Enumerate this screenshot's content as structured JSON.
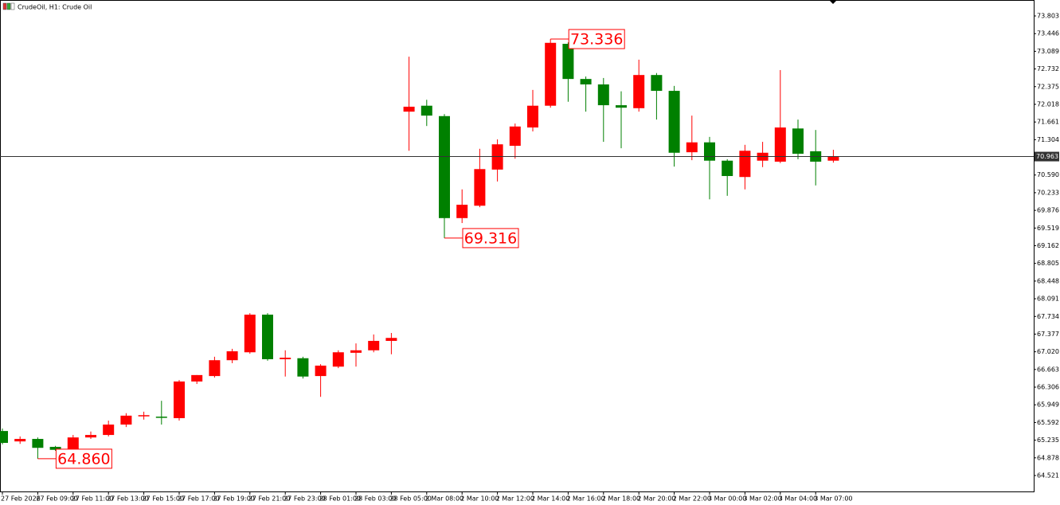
{
  "chart_data": {
    "type": "candlestick",
    "title": "CrudeOil, H1: Crude Oil",
    "categories": [
      "27 Feb 2026",
      null,
      "27 Feb 09:00",
      null,
      "27 Feb 11:00",
      null,
      "27 Feb 13:00",
      null,
      "27 Feb 15:00",
      null,
      "27 Feb 17:00",
      null,
      "27 Feb 19:00",
      null,
      "27 Feb 21:00",
      null,
      "27 Feb 23:00",
      null,
      "28 Feb 01:00",
      null,
      "28 Feb 03:00",
      null,
      "28 Feb 05:00",
      null,
      "2 Mar 08:00",
      null,
      "2 Mar 10:00",
      null,
      "2 Mar 12:00",
      null,
      "2 Mar 14:00",
      null,
      "2 Mar 16:00",
      null,
      "2 Mar 18:00",
      null,
      "2 Mar 20:00",
      null,
      "2 Mar 22:00",
      null,
      "3 Mar 00:00",
      null,
      "3 Mar 02:00",
      null,
      "3 Mar 04:00",
      null,
      "3 Mar 07:00",
      null
    ],
    "open": [
      65.42,
      65.21,
      65.26,
      65.1,
      65.04,
      65.29,
      65.34,
      65.55,
      65.72,
      65.71,
      65.68,
      66.42,
      66.53,
      66.85,
      67.01,
      67.77,
      66.87,
      66.89,
      66.53,
      66.72,
      67.0,
      67.05,
      67.24,
      71.87,
      71.99,
      71.78,
      69.72,
      69.97,
      70.7,
      71.18,
      71.55,
      71.99,
      73.24,
      72.53,
      72.42,
      72.0,
      71.94,
      72.61,
      72.29,
      71.05,
      71.25,
      70.88,
      70.55,
      70.88,
      70.86,
      71.53,
      71.07,
      70.88
    ],
    "high": [
      65.47,
      65.31,
      65.29,
      65.12,
      65.34,
      65.41,
      65.63,
      65.78,
      65.81,
      66.03,
      66.45,
      66.55,
      66.92,
      67.08,
      67.8,
      67.8,
      67.05,
      66.92,
      66.77,
      67.05,
      67.19,
      67.37,
      67.4,
      72.98,
      72.11,
      71.82,
      70.3,
      71.12,
      71.31,
      71.63,
      72.31,
      73.336,
      73.27,
      72.58,
      72.55,
      72.28,
      72.92,
      72.65,
      72.39,
      71.79,
      71.36,
      70.91,
      71.2,
      71.26,
      72.71,
      71.71,
      71.5,
      71.1
    ],
    "low": [
      65.15,
      65.16,
      64.86,
      65.02,
      65.0,
      65.26,
      65.31,
      65.5,
      65.65,
      65.55,
      65.63,
      66.37,
      66.5,
      66.79,
      66.98,
      66.84,
      66.52,
      66.48,
      66.11,
      66.69,
      66.72,
      67.01,
      66.97,
      71.08,
      71.58,
      69.316,
      69.62,
      69.94,
      70.46,
      70.92,
      71.47,
      71.95,
      72.07,
      71.87,
      71.26,
      71.13,
      71.87,
      71.71,
      70.76,
      70.89,
      70.1,
      70.17,
      70.3,
      70.75,
      70.83,
      70.91,
      70.38,
      70.84
    ],
    "close": [
      65.18,
      65.26,
      65.08,
      65.04,
      65.29,
      65.34,
      65.55,
      65.73,
      65.74,
      65.7,
      66.42,
      66.55,
      66.85,
      67.03,
      67.77,
      66.87,
      66.9,
      66.52,
      66.74,
      67.01,
      67.05,
      67.24,
      67.3,
      71.97,
      71.79,
      69.72,
      69.99,
      70.71,
      71.21,
      71.57,
      71.99,
      73.26,
      72.53,
      72.42,
      72.0,
      71.95,
      72.61,
      72.29,
      71.04,
      71.25,
      70.88,
      70.57,
      71.08,
      71.04,
      71.55,
      71.02,
      70.86,
      70.963
    ],
    "up_color": "#ff0000",
    "down_color": "#008000",
    "ylim": [
      64.199,
      74.125
    ],
    "yticks": [
      73.803,
      73.446,
      73.089,
      72.732,
      72.375,
      72.018,
      71.661,
      71.304,
      {
        "value": 70.59,
        "label": "70.590"
      },
      70.233,
      69.876,
      69.519,
      69.162,
      68.805,
      68.448,
      68.091,
      67.734,
      67.377,
      {
        "value": 67.02,
        "label": "67.020"
      },
      66.663,
      66.306,
      65.949,
      65.592,
      65.235,
      64.878,
      64.521
    ],
    "annotations": [
      {
        "value": 64.86,
        "label": "64.860",
        "bar": 2
      },
      {
        "value": 73.336,
        "label": "73.336",
        "bar": 31
      },
      {
        "value": 69.316,
        "label": "69.316",
        "bar": 25
      }
    ]
  }
}
